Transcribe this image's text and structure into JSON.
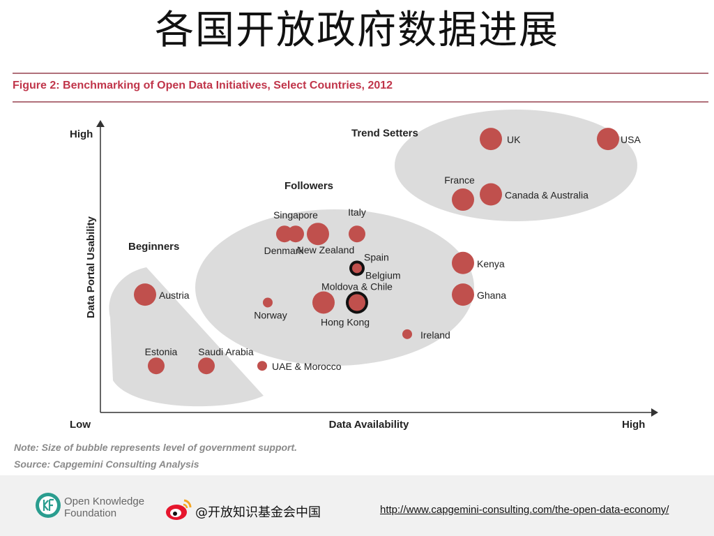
{
  "slide": {
    "title": "各国开放政府数据进展",
    "figure_caption": "Figure 2: Benchmarking of Open Data Initiatives, Select Countries, 2012",
    "note": "Note: Size of bubble represents level of government support.",
    "source": "Source: Capgemini Consulting Analysis"
  },
  "footer": {
    "org_name_line1": "Open Knowledge",
    "org_name_line2": "Foundation",
    "weibo_handle": "@开放知识基金会中国",
    "url": "http://www.capgemini-consulting.com/the-open-data-economy/"
  },
  "colors": {
    "bubble": "#c0504d",
    "cluster": "#dcdcdc",
    "caption": "#c0354a",
    "rule": "#b0707a"
  },
  "chart_data": {
    "type": "scatter",
    "title": "Figure 2: Benchmarking of Open Data Initiatives, Select Countries, 2012",
    "xlabel": "Data Availability",
    "ylabel": "Data Portal Usability",
    "x_ticks": {
      "low": "Low",
      "high": "High"
    },
    "y_ticks": {
      "high": "High"
    },
    "xlim": [
      0,
      100
    ],
    "ylim": [
      0,
      100
    ],
    "groups": [
      {
        "name": "Beginners",
        "label_x": 3,
        "label_y": 54
      },
      {
        "name": "Followers",
        "label_x": 31,
        "label_y": 77
      },
      {
        "name": "Trend Setters",
        "label_x": 43,
        "label_y": 97
      }
    ],
    "points": [
      {
        "label": "UK",
        "x": 68,
        "y": 96,
        "size": 3,
        "outlined": false
      },
      {
        "label": "USA",
        "x": 89,
        "y": 96,
        "size": 3,
        "outlined": false
      },
      {
        "label": "France",
        "x": 63,
        "y": 73,
        "size": 3,
        "outlined": false
      },
      {
        "label": "Canada & Australia",
        "x": 68,
        "y": 75,
        "size": 3,
        "outlined": false
      },
      {
        "label": "Denmark",
        "x": 31,
        "y": 60,
        "size": 2,
        "outlined": false
      },
      {
        "label": "Singapore",
        "x": 33,
        "y": 60,
        "size": 2,
        "outlined": false
      },
      {
        "label": "New Zealand",
        "x": 37,
        "y": 60,
        "size": 3,
        "outlined": false
      },
      {
        "label": "Italy",
        "x": 44,
        "y": 60,
        "size": 2,
        "outlined": false
      },
      {
        "label": "Spain",
        "x": 44,
        "y": 47,
        "size": 1,
        "outlined": true
      },
      {
        "label": "Belgium",
        "x": 44,
        "y": 47,
        "size": 1,
        "outlined": true
      },
      {
        "label": "Kenya",
        "x": 63,
        "y": 49,
        "size": 3,
        "outlined": false
      },
      {
        "label": "Austria",
        "x": 6,
        "y": 37,
        "size": 3,
        "outlined": false
      },
      {
        "label": "Ghana",
        "x": 63,
        "y": 37,
        "size": 3,
        "outlined": false
      },
      {
        "label": "Moldova & Chile",
        "x": 38,
        "y": 34,
        "size": 3,
        "outlined": false
      },
      {
        "label": "Hong Kong",
        "x": 44,
        "y": 34,
        "size": 2,
        "outlined": true
      },
      {
        "label": "Norway",
        "x": 28,
        "y": 34,
        "size": 1,
        "outlined": false
      },
      {
        "label": "Ireland",
        "x": 53,
        "y": 22,
        "size": 1,
        "outlined": false
      },
      {
        "label": "Estonia",
        "x": 8,
        "y": 10,
        "size": 2,
        "outlined": false
      },
      {
        "label": "Saudi Arabia",
        "x": 17,
        "y": 10,
        "size": 2,
        "outlined": false
      },
      {
        "label": "UAE & Morocco",
        "x": 27,
        "y": 10,
        "size": 1,
        "outlined": false
      }
    ]
  }
}
